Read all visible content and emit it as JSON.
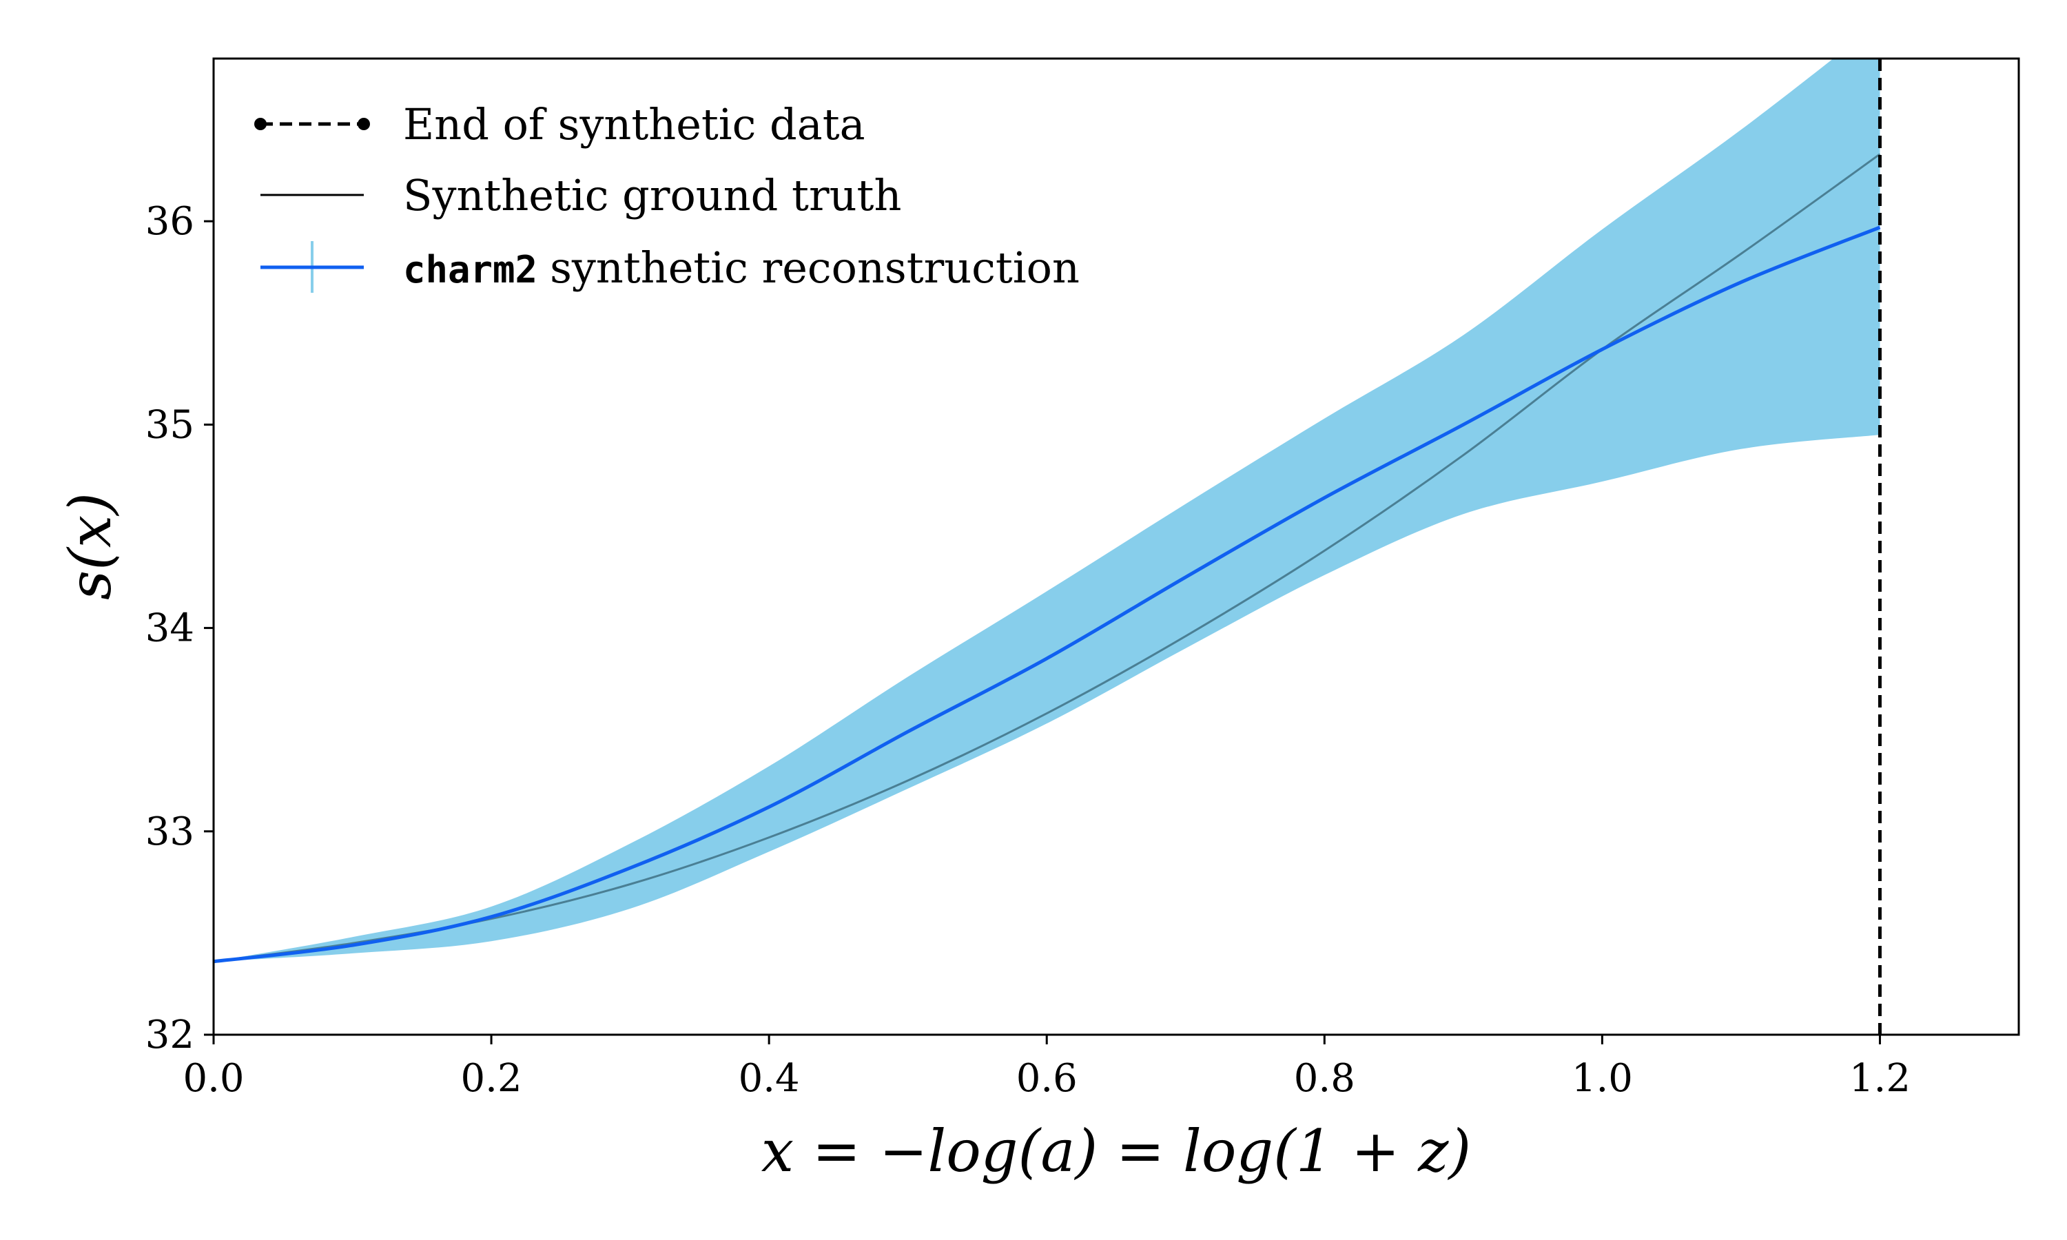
{
  "chart_data": {
    "type": "line",
    "xlabel": "x = −log(a) = log(1 + z)",
    "ylabel": "s(x)",
    "xlim": [
      0.0,
      1.3
    ],
    "ylim": [
      32.0,
      36.8
    ],
    "x_ticks": [
      "0.0",
      "0.2",
      "0.4",
      "0.6",
      "0.8",
      "1.0",
      "1.2"
    ],
    "y_ticks": [
      "32",
      "33",
      "34",
      "35",
      "36"
    ],
    "grid": false,
    "legend_position": "top-left",
    "legend": {
      "end_label": "End of synthetic data",
      "truth_label": "Synthetic ground truth",
      "recon_mono": "charm2",
      "recon_label": "synthetic reconstruction"
    },
    "end_of_data_x": 1.2,
    "colors": {
      "band": "#87ceeb",
      "reconstruction": "#1060f0",
      "truth": "#4a7f94",
      "end_line": "#000000"
    },
    "series": [
      {
        "name": "Synthetic ground truth",
        "x": [
          0.0,
          0.1,
          0.2,
          0.3,
          0.4,
          0.5,
          0.6,
          0.7,
          0.8,
          0.9,
          1.0,
          1.1,
          1.2
        ],
        "y": [
          32.36,
          32.45,
          32.57,
          32.74,
          32.97,
          33.25,
          33.58,
          33.96,
          34.38,
          34.85,
          35.37,
          35.84,
          36.33
        ]
      },
      {
        "name": "charm2 synthetic reconstruction",
        "x": [
          0.0,
          0.1,
          0.2,
          0.3,
          0.4,
          0.5,
          0.6,
          0.7,
          0.8,
          0.9,
          1.0,
          1.1,
          1.2
        ],
        "y": [
          32.36,
          32.44,
          32.58,
          32.82,
          33.12,
          33.49,
          33.85,
          34.25,
          34.64,
          35.0,
          35.37,
          35.7,
          35.97
        ],
        "lower": [
          32.36,
          32.4,
          32.46,
          32.62,
          32.9,
          33.21,
          33.53,
          33.9,
          34.26,
          34.56,
          34.72,
          34.88,
          34.95
        ],
        "upper": [
          32.36,
          32.48,
          32.63,
          32.94,
          33.32,
          33.76,
          34.18,
          34.61,
          35.03,
          35.44,
          35.96,
          36.45,
          36.98
        ]
      }
    ]
  }
}
